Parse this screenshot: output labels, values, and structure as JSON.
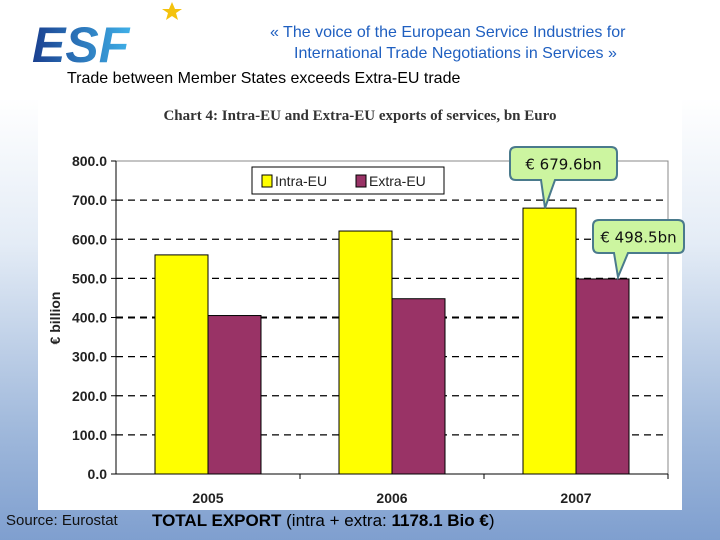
{
  "header": {
    "logo_text": "ESF",
    "tagline_line1": "« The voice of the European Service Industries for",
    "tagline_line2": "International Trade Negotiations in Services »",
    "headline": "Trade between Member States exceeds Extra-EU trade"
  },
  "chart_data": {
    "type": "bar",
    "title": "Chart 4: Intra-EU and Extra-EU exports of services, bn Euro",
    "ylabel": "€ billion",
    "xlabel": "",
    "categories": [
      "2005",
      "2006",
      "2007"
    ],
    "series": [
      {
        "name": "Intra-EU",
        "values": [
          560,
          621,
          679.6
        ],
        "color": "#ffff00"
      },
      {
        "name": "Extra-EU",
        "values": [
          405,
          448,
          498.5
        ],
        "color": "#993366"
      }
    ],
    "ylim": [
      0,
      800
    ],
    "yticks": [
      "0.0",
      "100.0",
      "200.0",
      "300.0",
      "400.0",
      "500.0",
      "600.0",
      "700.0",
      "800.0"
    ],
    "grid": true,
    "legend": "top-center",
    "annotations": [
      "€ 679.6bn",
      "€ 498.5bn"
    ]
  },
  "footer": {
    "source": "Source: Eurostat",
    "total_bold": "TOTAL EXPORT",
    "total_rest1": " (intra + extra: ",
    "total_value": "1178.1 Bio €",
    "total_rest2": ")"
  }
}
